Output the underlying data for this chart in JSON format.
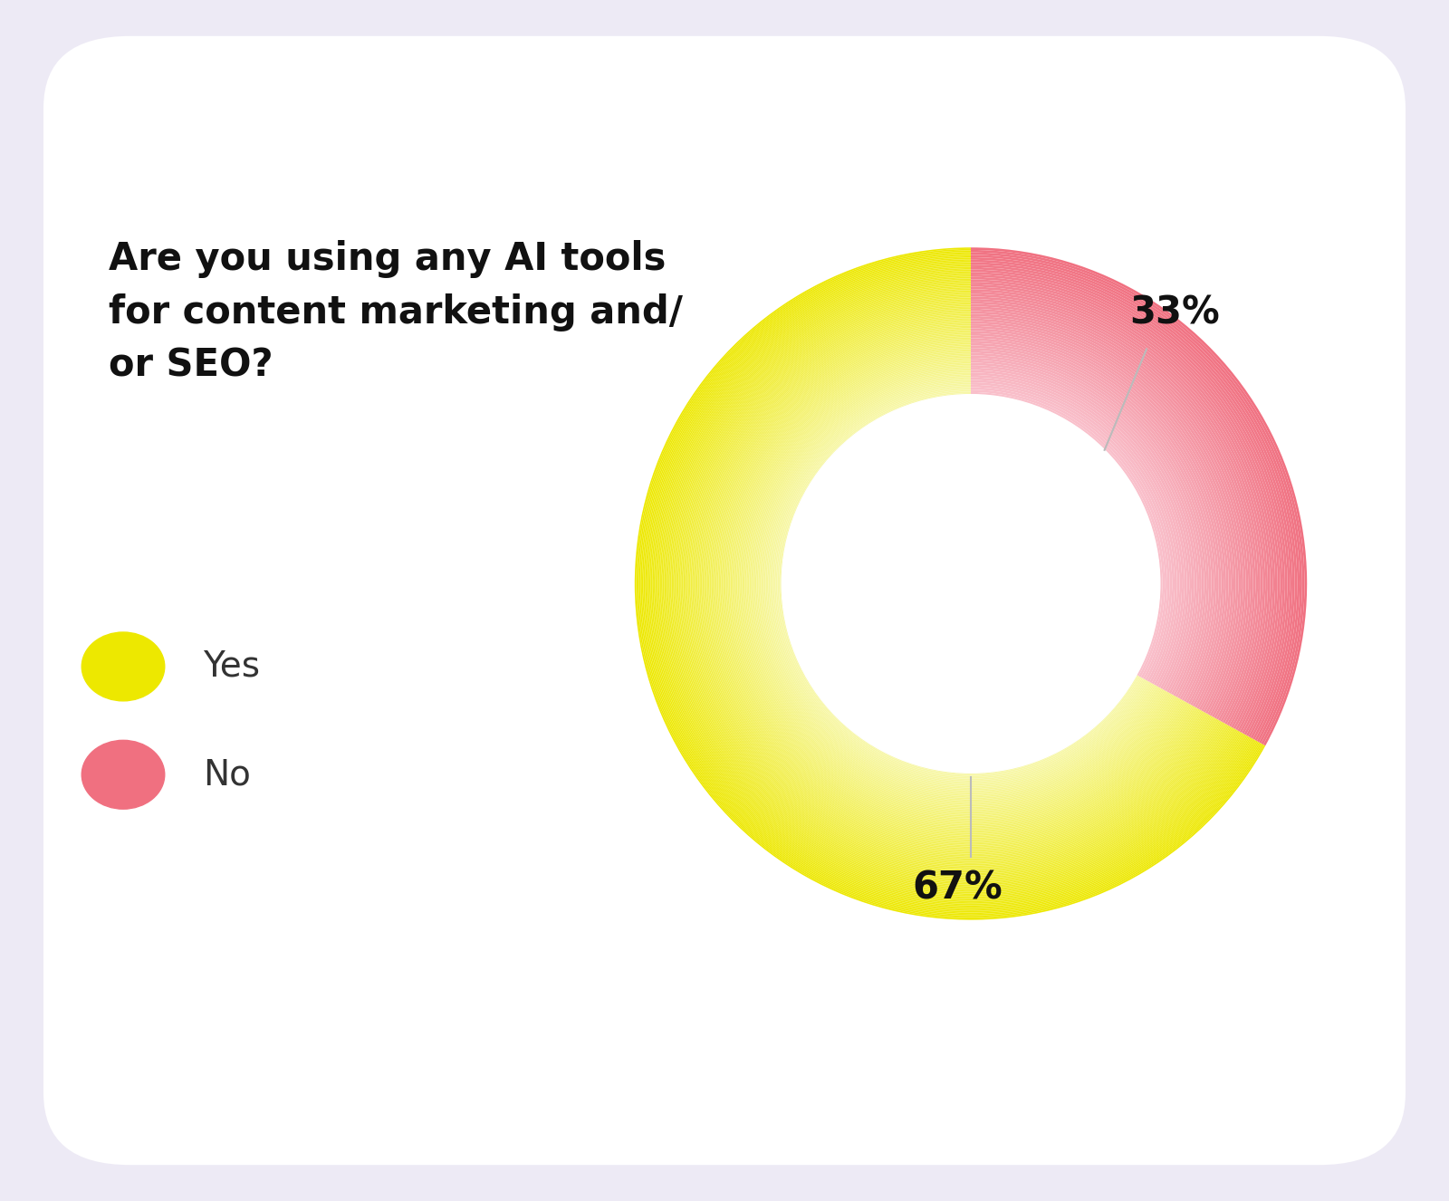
{
  "title": "Are you using any AI tools\nfor content marketing and/\nor SEO?",
  "values": [
    67,
    33
  ],
  "labels": [
    "Yes",
    "No"
  ],
  "color_yes_outer": "#ede800",
  "color_yes_inner": "#f7f7a8",
  "color_no_outer": "#f07080",
  "color_no_inner": "#f9c0cb",
  "background_color": "#edeaf5",
  "card_color": "#ffffff",
  "label_67": "67%",
  "label_33": "33%",
  "legend_yes": "Yes",
  "legend_no": "No",
  "title_fontsize": 30,
  "legend_fontsize": 28,
  "annot_fontsize": 30,
  "yes_pct": 67,
  "no_pct": 33
}
